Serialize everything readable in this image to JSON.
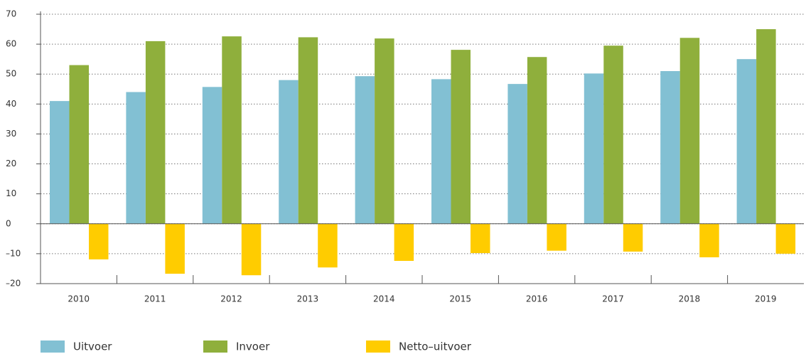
{
  "chart_data": {
    "type": "bar",
    "categories": [
      "2010",
      "2011",
      "2012",
      "2013",
      "2014",
      "2015",
      "2016",
      "2017",
      "2018",
      "2019"
    ],
    "series": [
      {
        "name": "Uitvoer",
        "color": "#82c0d3",
        "values": [
          41,
          44,
          45.7,
          48,
          49.3,
          48.3,
          46.7,
          50.2,
          51,
          55
        ]
      },
      {
        "name": "Invoer",
        "color": "#8faf3c",
        "values": [
          53,
          61,
          62.6,
          62.3,
          61.9,
          58.1,
          55.7,
          59.5,
          62.1,
          65
        ]
      },
      {
        "name": "Netto–uitvoer",
        "color": "#ffcc00",
        "values": [
          -11.9,
          -16.7,
          -17.2,
          -14.6,
          -12.4,
          -9.8,
          -9,
          -9.3,
          -11.2,
          -10
        ]
      }
    ],
    "ylim": [
      -20,
      70
    ],
    "yticks": [
      {
        "value": -20,
        "label": "–20"
      },
      {
        "value": -10,
        "label": "–10"
      },
      0,
      10,
      20,
      30,
      40,
      50,
      60,
      70
    ],
    "grid": true
  }
}
